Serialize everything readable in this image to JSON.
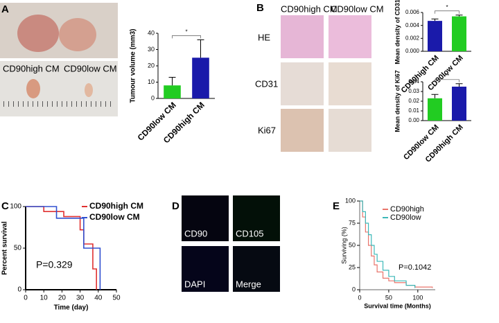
{
  "panel_labels": [
    "A",
    "B",
    "C",
    "D",
    "E"
  ],
  "photo_labels": [
    "CD90high CM",
    "CD90low CM"
  ],
  "stain": {
    "columns": [
      "CD90high CM",
      "CD90low CM"
    ],
    "rows": [
      "HE",
      "CD31",
      "Ki67"
    ]
  },
  "fluor": [
    "CD90",
    "CD105",
    "DAPI",
    "Merge"
  ],
  "chart_data": [
    {
      "type": "bar",
      "ylabel": "Tumour volume (mm3)",
      "categories": [
        "CD90low CM",
        "CD90high CM"
      ],
      "values": [
        8,
        25
      ],
      "errors": [
        5,
        11
      ],
      "colors": [
        "#22cc22",
        "#1a1aaa"
      ],
      "ylim": [
        0,
        40
      ],
      "yticks": [
        0,
        10,
        20,
        30,
        40
      ],
      "annotation": "*"
    },
    {
      "type": "bar",
      "ylabel": "Mean density of CD31",
      "categories": [
        "CD90high CM",
        "CD90low CM"
      ],
      "values": [
        0.0047,
        0.0054
      ],
      "errors": [
        0.0003,
        0.0002
      ],
      "colors": [
        "#1a1aaa",
        "#22cc22"
      ],
      "ylim": [
        0,
        0.006
      ],
      "yticks": [
        {
          "value": 0,
          "label": "0.000"
        },
        {
          "value": 0.002,
          "label": "0.002"
        },
        {
          "value": 0.004,
          "label": "0.004"
        },
        {
          "value": 0.006,
          "label": "0.006"
        }
      ],
      "annotation": "*"
    },
    {
      "type": "bar",
      "ylabel": "Mean density of Ki67",
      "categories": [
        "CD90low CM",
        "CD90high CM"
      ],
      "values": [
        0.023,
        0.035
      ],
      "errors": [
        0.004,
        0.003
      ],
      "colors": [
        "#22cc22",
        "#1a1aaa"
      ],
      "ylim": [
        0,
        0.04
      ],
      "yticks": [
        {
          "value": 0,
          "label": "0.00"
        },
        {
          "value": 0.01,
          "label": "0.01"
        },
        {
          "value": 0.02,
          "label": "0.02"
        },
        {
          "value": 0.03,
          "label": "0.03"
        },
        {
          "value": 0.04,
          "label": "0.04"
        }
      ],
      "annotation": "**"
    },
    {
      "type": "line",
      "step": true,
      "ylabel": "Percent survival",
      "xlabel": "Time (day)",
      "annotation": "P=0.329",
      "x": [
        0,
        10,
        17,
        21,
        30,
        32,
        37,
        39,
        41
      ],
      "series": [
        {
          "name": "CD90high CM",
          "color": "#e03030",
          "values": [
            100,
            94,
            94,
            88,
            72,
            55,
            25,
            0,
            null
          ]
        },
        {
          "name": "CD90low CM",
          "color": "#3050d0",
          "values": [
            100,
            100,
            86,
            86,
            86,
            50,
            50,
            50,
            0
          ]
        }
      ],
      "xlim": [
        0,
        50
      ],
      "xticks": [
        0,
        10,
        20,
        30,
        40,
        50
      ],
      "ylim": [
        0,
        100
      ],
      "yticks": [
        0,
        50,
        100
      ]
    },
    {
      "type": "line",
      "step": true,
      "ylabel": "Surviving (%)",
      "xlabel": "Survival time (Months)",
      "annotation": "P=0.1042",
      "x": [
        0,
        5,
        10,
        15,
        20,
        25,
        30,
        40,
        50,
        60,
        80,
        95,
        125
      ],
      "series": [
        {
          "name": "CD90high",
          "color": "#e8746b",
          "values": [
            100,
            82,
            65,
            50,
            38,
            28,
            20,
            13,
            10,
            8,
            5,
            3,
            2
          ]
        },
        {
          "name": "CD90low",
          "color": "#3cb8b8",
          "values": [
            100,
            88,
            75,
            62,
            50,
            40,
            32,
            22,
            15,
            10,
            5,
            2,
            null
          ]
        }
      ],
      "xlim": [
        0,
        130
      ],
      "xticks": [
        0,
        50,
        100
      ],
      "ylim": [
        0,
        100
      ],
      "yticks": [
        0,
        25,
        50,
        75,
        100
      ]
    }
  ]
}
